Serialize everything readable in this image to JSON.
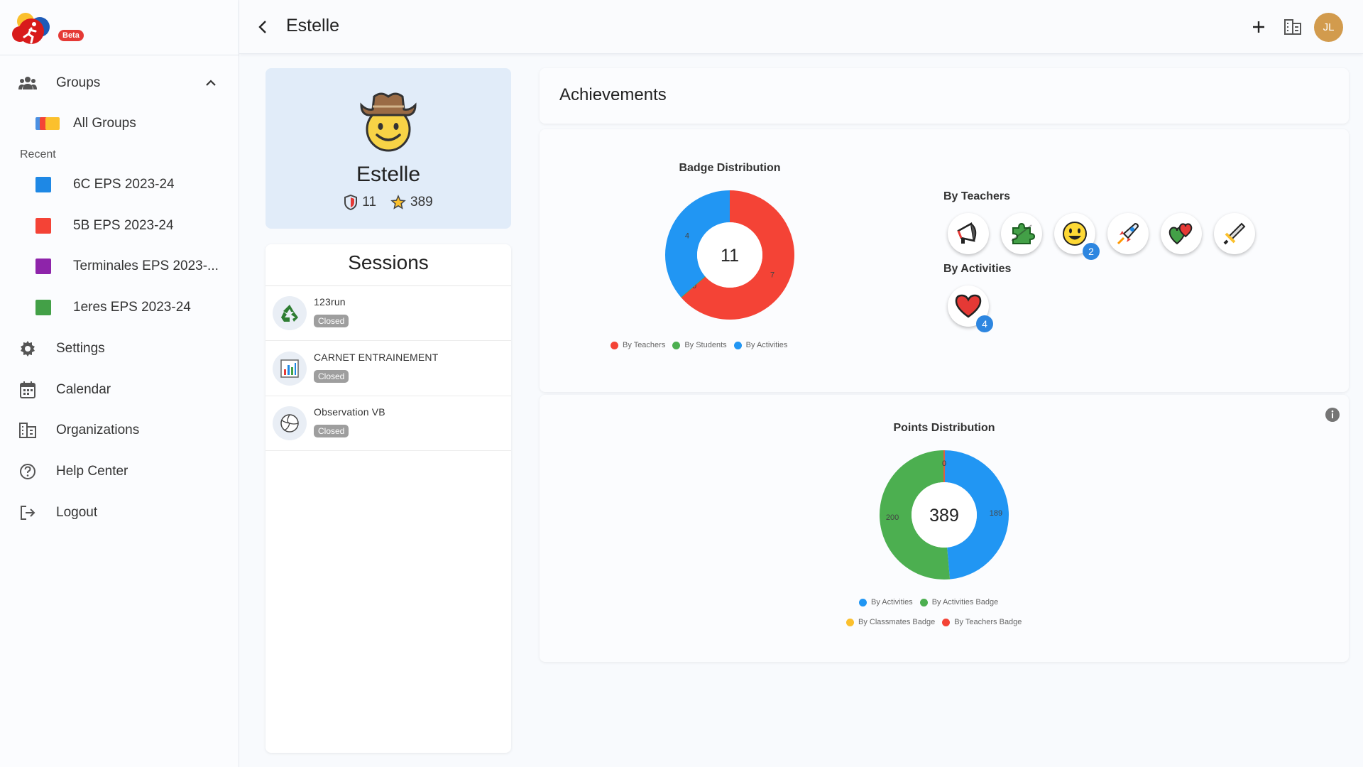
{
  "app": {
    "beta_label": "Beta"
  },
  "header": {
    "title": "Estelle",
    "avatar_initials": "JL"
  },
  "sidebar": {
    "groups_label": "Groups",
    "all_groups_label": "All Groups",
    "recent_label": "Recent",
    "recent_groups": [
      {
        "label": "6C EPS 2023-24",
        "color": "#1e88e5"
      },
      {
        "label": "5B EPS 2023-24",
        "color": "#f44336"
      },
      {
        "label": "Terminales EPS 2023-...",
        "color": "#8e24aa"
      },
      {
        "label": "1eres EPS 2023-24",
        "color": "#43a047"
      }
    ],
    "items": [
      {
        "label": "Settings",
        "icon": "gear-icon"
      },
      {
        "label": "Calendar",
        "icon": "calendar-icon"
      },
      {
        "label": "Organizations",
        "icon": "organization-icon"
      },
      {
        "label": "Help Center",
        "icon": "help-icon"
      },
      {
        "label": "Logout",
        "icon": "logout-icon"
      }
    ]
  },
  "profile": {
    "name": "Estelle",
    "badges": "11",
    "points": "389"
  },
  "sessions": {
    "title": "Sessions",
    "items": [
      {
        "name": "123run",
        "status": "Closed",
        "icon": "recycle-icon"
      },
      {
        "name": "CARNET ENTRAINEMENT",
        "status": "Closed",
        "icon": "bar-chart-icon"
      },
      {
        "name": "Observation VB",
        "status": "Closed",
        "icon": "volleyball-icon"
      }
    ]
  },
  "achievements": {
    "title": "Achievements",
    "by_teachers_label": "By Teachers",
    "by_activities_label": "By Activities",
    "teacher_badges": [
      {
        "icon": "megaphone-icon",
        "count": null
      },
      {
        "icon": "puzzle-icon",
        "count": null
      },
      {
        "icon": "smiley-icon",
        "count": "2"
      },
      {
        "icon": "rocket-icon",
        "count": null
      },
      {
        "icon": "hearts-icon",
        "count": null
      },
      {
        "icon": "sword-icon",
        "count": null
      }
    ],
    "activity_badges": [
      {
        "icon": "heart-icon",
        "count": "4"
      }
    ]
  },
  "chart_data": [
    {
      "type": "pie",
      "title": "Badge Distribution",
      "center_label": "11",
      "categories": [
        "By Teachers",
        "By Students",
        "By Activities"
      ],
      "values": [
        7,
        0,
        4
      ],
      "colors": [
        "#f44336",
        "#4caf50",
        "#2196f3"
      ],
      "legend_position": "bottom"
    },
    {
      "type": "pie",
      "title": "Points Distribution",
      "center_label": "389",
      "categories": [
        "By Activities",
        "By Activities Badge",
        "By Classmates Badge",
        "By Teachers Badge"
      ],
      "values": [
        189,
        200,
        0,
        0
      ],
      "colors": [
        "#2196f3",
        "#4caf50",
        "#fbc02d",
        "#f44336"
      ],
      "legend_position": "bottom"
    }
  ]
}
